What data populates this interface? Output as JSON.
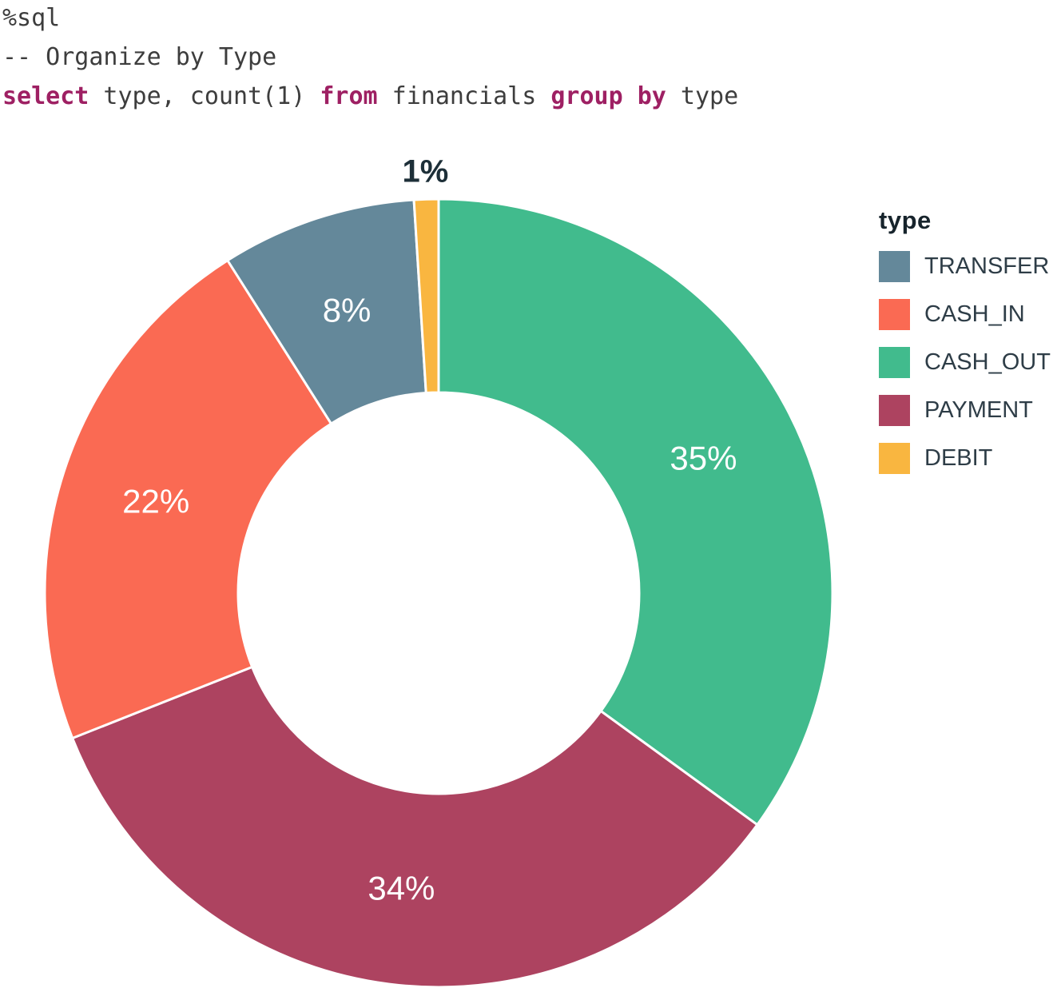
{
  "code": {
    "text_color": "#3d3d3d",
    "keyword_color": "#9e2063",
    "lines": [
      [
        {
          "t": "%sql",
          "k": false
        }
      ],
      [
        {
          "t": "-- Organize by Type",
          "k": false
        }
      ],
      [
        {
          "t": "select",
          "k": true
        },
        {
          "t": " type, count(1) ",
          "k": false
        },
        {
          "t": "from",
          "k": true
        },
        {
          "t": " financials ",
          "k": false
        },
        {
          "t": "group by",
          "k": true
        },
        {
          "t": " type",
          "k": false
        }
      ]
    ]
  },
  "chart_data": {
    "type": "pie",
    "title": "",
    "legend_title": "type",
    "legend_position": "right",
    "hole": 0.51,
    "units": "percent",
    "categories": [
      "TRANSFER",
      "CASH_IN",
      "CASH_OUT",
      "PAYMENT",
      "DEBIT"
    ],
    "series": [
      {
        "name": "TRANSFER",
        "percent": 8,
        "color": "#64889a",
        "label_outside": false
      },
      {
        "name": "CASH_IN",
        "percent": 22,
        "color": "#fa6a53",
        "label_outside": false
      },
      {
        "name": "CASH_OUT",
        "percent": 35,
        "color": "#41bb8d",
        "label_outside": false
      },
      {
        "name": "PAYMENT",
        "percent": 34,
        "color": "#ad4360",
        "label_outside": false
      },
      {
        "name": "DEBIT",
        "percent": 1,
        "color": "#f9b640",
        "label_outside": true
      }
    ],
    "slice_order": [
      "CASH_OUT",
      "PAYMENT",
      "CASH_IN",
      "TRANSFER",
      "DEBIT"
    ],
    "slice_label_color_inside": "#ffffff",
    "slice_label_color_outside": "#1d2f38",
    "separator_color": "#ffffff"
  }
}
